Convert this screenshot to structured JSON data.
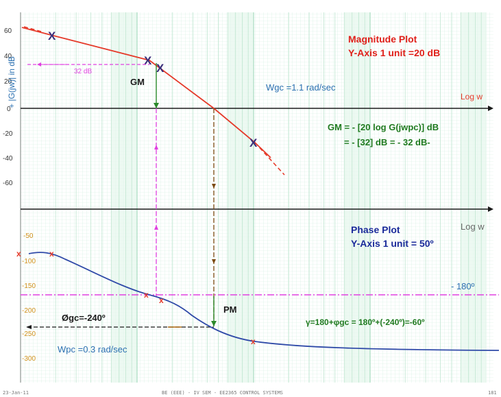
{
  "colors": {
    "magnitude_curve": "#e53a2a",
    "phase_curve": "#2f4aa8",
    "marker_x_dark": "#3a2f7a",
    "marker_x_red": "#e53a2a",
    "magenta": "#e040e0",
    "dark_green": "#2a8a2a",
    "olive": "#7a4a10",
    "red_title": "#e0201a",
    "blue_title": "#1a2a9a",
    "green_text": "#1f7a1f",
    "wgc_text": "#2a6fb0",
    "phase_tick": "#d0901a",
    "mag_tick": "#333333"
  },
  "magnitude": {
    "title": "Magnitude Plot",
    "scale_note": "Y-Axis 1 unit =20 dB",
    "yaxis_label": "+ |G(jw)| in dB",
    "ticks": [
      "60",
      "40",
      "20",
      "0",
      "-20",
      "-40",
      "-60"
    ],
    "axis_label": "Log w",
    "gm_label": "GM",
    "db_marker": "32 dB",
    "wgc": "Wgc =1.1 rad/sec",
    "gm_eq_line1": "GM = - [20 log G(jwpc)] dB",
    "gm_eq_line2": "= - [32] dB = - 32 dB-"
  },
  "phase": {
    "title": "Phase Plot",
    "scale_note": "Y-Axis 1 unit = 50º",
    "ticks": [
      "-50",
      "-100",
      "-150",
      "-200",
      "-250",
      "-300"
    ],
    "axis_label": "Log w",
    "ref_line": "- 180º",
    "pm_label": "PM",
    "phi_gc": "Øgc=-240º",
    "wpc": "Wpc =0.3 rad/sec",
    "pm_eq": "γ=180+φgc = 180º+(-240º)=-60º"
  },
  "footer": {
    "date": "23-Jan-11",
    "course": "BE (EEE) - IV SEM - EE2365 CONTROL SYSTEMS",
    "page": "181"
  }
}
